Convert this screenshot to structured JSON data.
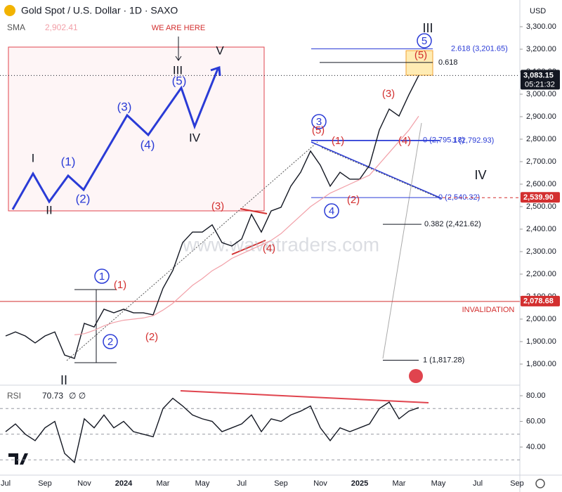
{
  "header": {
    "symbol": "Gold Spot / U.S. Dollar · 1D · SAXO",
    "currency": "USD",
    "watermark": "www.wavetraders.com"
  },
  "chart_data": {
    "type": "line",
    "categories": [
      "Jul",
      null,
      null,
      null,
      "Sep",
      null,
      null,
      null,
      "Nov",
      null,
      null,
      null,
      "2024",
      null,
      null,
      null,
      "Mar",
      null,
      null,
      null,
      "May",
      null,
      null,
      null,
      "Jul",
      null,
      null,
      null,
      "Sep",
      null,
      null,
      null,
      "Nov",
      null,
      null,
      null,
      "2025",
      null,
      null,
      null,
      "Mar",
      null,
      null,
      null,
      "May",
      null,
      null,
      null,
      "Jul",
      null,
      null,
      null,
      "Sep"
    ],
    "series": [
      {
        "color": "#131722",
        "values": [
          1925,
          1943,
          1925,
          1894,
          1925,
          1943,
          1840,
          1825,
          1981,
          1965,
          2044,
          2028,
          2044,
          2028,
          2028,
          2019,
          2137,
          2216,
          2340,
          2387,
          2387,
          2419,
          2340,
          2325,
          2356,
          2466,
          2387,
          2481,
          2497,
          2591,
          2653,
          2747,
          2684,
          2591,
          2653,
          2622,
          2622,
          2684,
          2841,
          2934,
          2903,
          2997,
          3083.15,
          null,
          null,
          null,
          null,
          null,
          null,
          null,
          null,
          null,
          null
        ]
      },
      {
        "name": "SMA",
        "legend_value": "2,902.41",
        "color": "#f2a0a8",
        "values": [
          null,
          null,
          null,
          null,
          null,
          null,
          null,
          1930,
          1935,
          1950,
          1970,
          1985,
          1995,
          2000,
          2005,
          2015,
          2040,
          2070,
          2110,
          2150,
          2180,
          2215,
          2240,
          2270,
          2290,
          2310,
          2330,
          2350,
          2380,
          2420,
          2460,
          2500,
          2530,
          2560,
          2580,
          2600,
          2620,
          2640,
          2690,
          2740,
          2790,
          2840,
          2902.41,
          null,
          null,
          null,
          null,
          null,
          null,
          null,
          null,
          null,
          null
        ]
      }
    ],
    "ylim": [
      1706.25,
      3418.75
    ],
    "yticks": [
      {
        "value": 1800,
        "label": "1,800.00"
      },
      {
        "value": 1900,
        "label": "1,900.00"
      },
      {
        "value": 2000,
        "label": "2,000.00"
      },
      {
        "value": 2100,
        "label": "2,100.00"
      },
      {
        "value": 2200,
        "label": "2,200.00"
      },
      {
        "value": 2300,
        "label": "2,300.00"
      },
      {
        "value": 2400,
        "label": "2,400.00"
      },
      {
        "value": 2500,
        "label": "2,500.00"
      },
      {
        "value": 2600,
        "label": "2,600.00"
      },
      {
        "value": 2700,
        "label": "2,700.00"
      },
      {
        "value": 2800,
        "label": "2,800.00"
      },
      {
        "value": 2900,
        "label": "2,900.00"
      },
      {
        "value": 3000,
        "label": "3,000.00"
      },
      {
        "value": 3100,
        "label": "3,100.00"
      },
      {
        "value": 3200,
        "label": "3,200.00"
      },
      {
        "value": 3300,
        "label": "3,300.00"
      }
    ],
    "badges": [
      {
        "value": 3083.15,
        "label": "3,083.15",
        "sub": "05:21:32",
        "color": "#131722"
      },
      {
        "value": 2539.9,
        "label": "2,539.90",
        "color": "#d32f2f"
      },
      {
        "value": 2078.68,
        "label": "2,078.68",
        "color": "#d32f2f"
      }
    ],
    "fib_levels": [
      {
        "value": 3201.65,
        "label": "2.618 (3,201.65)",
        "color": "#2a3bd6"
      },
      {
        "value": 3141,
        "label": "0.618",
        "color": "#131722"
      },
      {
        "value": 2795.18,
        "label": "0 (2,795.18)",
        "color": "#2a3bd6"
      },
      {
        "value": 2792.93,
        "label": "1 (2,792.93)",
        "color": "#2a3bd6"
      },
      {
        "value": 2540.32,
        "label": "0 (2,540.32)",
        "color": "#2a3bd6"
      },
      {
        "value": 2421.62,
        "label": "0.382 (2,421.62)",
        "color": "#131722"
      },
      {
        "value": 1817.28,
        "label": "1 (1,817.28)",
        "color": "#131722"
      }
    ],
    "annotations": [
      {
        "text": "1",
        "color": "#2a3bd6",
        "circled": true
      },
      {
        "text": "2",
        "color": "#2a3bd6",
        "circled": true
      },
      {
        "text": "3",
        "color": "#2a3bd6",
        "circled": true
      },
      {
        "text": "4",
        "color": "#2a3bd6",
        "circled": true
      },
      {
        "text": "5",
        "color": "#2a3bd6",
        "circled": true
      },
      {
        "text": "(1)",
        "color": "#d32f2f"
      },
      {
        "text": "(2)",
        "color": "#d32f2f"
      },
      {
        "text": "(3)",
        "color": "#d32f2f"
      },
      {
        "text": "(4)",
        "color": "#d32f2f"
      },
      {
        "text": "(5)",
        "color": "#d32f2f"
      },
      {
        "text": "(1)",
        "color": "#d32f2f"
      },
      {
        "text": "(2)",
        "color": "#d32f2f"
      },
      {
        "text": "(3)",
        "color": "#d32f2f"
      },
      {
        "text": "(4)",
        "color": "#d32f2f"
      },
      {
        "text": "(5)",
        "color": "#d32f2f"
      },
      {
        "text": "II",
        "color": "#131722"
      },
      {
        "text": "III",
        "color": "#131722"
      },
      {
        "text": "IV",
        "color": "#131722"
      },
      {
        "text": "INVALIDATION",
        "color": "#d32f2f"
      }
    ],
    "rsi": {
      "name": "RSI",
      "value_text": "70.73",
      "extra_text": "∅ ∅",
      "color": "#131722",
      "values": [
        52,
        58,
        50,
        45,
        55,
        60,
        35,
        28,
        62,
        55,
        65,
        55,
        60,
        52,
        50,
        48,
        70,
        78,
        72,
        65,
        62,
        60,
        52,
        55,
        58,
        65,
        52,
        62,
        60,
        65,
        68,
        72,
        55,
        45,
        55,
        52,
        55,
        58,
        70,
        75,
        62,
        68,
        70.73,
        null,
        null,
        null,
        null,
        null,
        null,
        null,
        null,
        null,
        null
      ],
      "ylim": [
        20.3,
        84.4
      ],
      "yticks": [
        {
          "value": 40,
          "label": "40.00"
        },
        {
          "value": 60,
          "label": "60.00"
        },
        {
          "value": 80,
          "label": "80.00"
        }
      ],
      "levels": [
        70,
        50,
        30
      ]
    }
  },
  "inset": {
    "labels": [
      "I",
      "II",
      "(1)",
      "(2)",
      "(3)",
      "(4)",
      "(5)",
      "III",
      "IV",
      "V",
      "WE ARE HERE"
    ]
  }
}
